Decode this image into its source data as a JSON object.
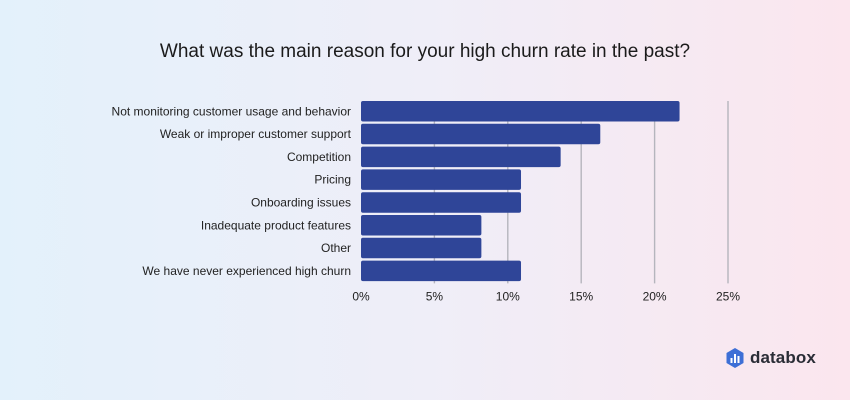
{
  "brand": {
    "name": "databox",
    "logo": "databox-logo-icon",
    "logo_color": "#3d6fd6"
  },
  "chart_data": {
    "type": "bar",
    "orientation": "horizontal",
    "title": "What was the main reason for your high churn rate in the past?",
    "categories": [
      "Not monitoring customer usage and behavior",
      "Weak or improper customer support",
      "Competition",
      "Pricing",
      "Onboarding issues",
      "Inadequate product features",
      "Other",
      "We have never experienced high churn"
    ],
    "values": [
      21.7,
      16.3,
      13.6,
      10.9,
      10.9,
      8.2,
      8.2,
      10.9
    ],
    "xlim": [
      0,
      25
    ],
    "xticks": [
      0,
      5,
      10,
      15,
      20,
      25
    ],
    "tick_labels": [
      "0%",
      "5%",
      "10%",
      "15%",
      "20%",
      "25%"
    ],
    "grid": true,
    "bar_color": "#2f4598"
  }
}
